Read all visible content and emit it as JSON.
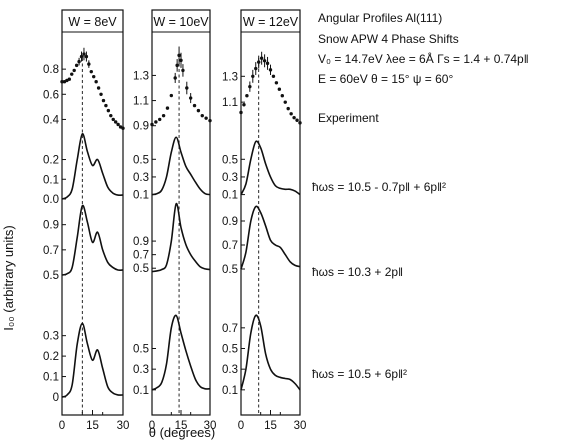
{
  "chart_data": {
    "type": "line",
    "xlabel": "θ (degrees)",
    "ylabel": "I₀₀ (arbitrary units)",
    "xlim": [
      0,
      30
    ],
    "xticks": [
      "0",
      "15",
      "30"
    ],
    "xtick_values": [
      0,
      15,
      30
    ],
    "minor_xticks": [
      10,
      20
    ],
    "header": {
      "line1": "Angular Profiles Al(111)",
      "line2": "Snow APW  4 Phase Shifts",
      "line3": "V₀ = 14.7eV   λee = 6Å   Γs = 1.4 + 0.74p‖",
      "line4": "E = 60eV   θ = 15°   ψ = 60°"
    },
    "row_labels": [
      "Experiment",
      "ħωs = 10.5 - 0.7p‖ + 6p‖²",
      "ħωs = 10.3 + 2p‖",
      "ħωs = 10.5 + 6p‖²"
    ],
    "panels": [
      {
        "title": "W = 8eV",
        "peak_x": 10,
        "rows": [
          {
            "kind": "experiment",
            "ylim": [
              0.3,
              1.0
            ],
            "yticks": [
              {
                "label": "0.8",
                "v": 0.8
              },
              {
                "label": "0.6",
                "v": 0.6
              },
              {
                "label": "0.4",
                "v": 0.4
              }
            ],
            "x": [
              0,
              1.2,
              2.4,
              3.6,
              4.8,
              6,
              7.2,
              8.4,
              9.6,
              10.8,
              12,
              13.2,
              14.4,
              15.6,
              16.8,
              18,
              19.2,
              20.4,
              21.6,
              22.8,
              24,
              25.2,
              26.4,
              27.6,
              28.8,
              30
            ],
            "y": [
              0.7,
              0.7,
              0.71,
              0.72,
              0.76,
              0.79,
              0.83,
              0.86,
              0.9,
              0.92,
              0.9,
              0.84,
              0.78,
              0.74,
              0.7,
              0.65,
              0.6,
              0.55,
              0.51,
              0.47,
              0.43,
              0.4,
              0.38,
              0.36,
              0.34,
              0.33
            ],
            "yerr": [
              0,
              0,
              0,
              0,
              0,
              0,
              0,
              0.03,
              0.04,
              0.05,
              0.04,
              0.03,
              0,
              0,
              0,
              0,
              0,
              0,
              0,
              0,
              0,
              0,
              0,
              0,
              0,
              0
            ]
          },
          {
            "kind": "theory",
            "ylim": [
              0,
              0.38
            ],
            "yticks": [
              {
                "label": "0.2",
                "v": 0.2
              },
              {
                "label": "0.1",
                "v": 0.1
              },
              {
                "label": "0.0",
                "v": 0
              }
            ],
            "x": [
              0,
              2.5,
              5,
              7.5,
              10,
              12.5,
              15,
              17.5,
              20,
              22.5,
              25,
              27.5,
              30
            ],
            "y": [
              0,
              0.01,
              0.05,
              0.2,
              0.33,
              0.24,
              0.17,
              0.2,
              0.13,
              0.06,
              0.03,
              0.02,
              0.02
            ]
          },
          {
            "kind": "theory",
            "ylim": [
              0.5,
              1.12
            ],
            "yticks": [
              {
                "label": "0.9",
                "v": 0.9
              },
              {
                "label": "0.7",
                "v": 0.7
              },
              {
                "label": "0.5",
                "v": 0.5
              }
            ],
            "x": [
              0,
              2.5,
              5,
              7.5,
              10,
              12.5,
              15,
              17.5,
              20,
              22.5,
              25,
              27.5,
              30
            ],
            "y": [
              0.5,
              0.51,
              0.56,
              0.8,
              1.05,
              0.92,
              0.76,
              0.84,
              0.7,
              0.6,
              0.56,
              0.54,
              0.54
            ]
          },
          {
            "kind": "theory",
            "ylim": [
              0,
              0.45
            ],
            "yticks": [
              {
                "label": "0.3",
                "v": 0.3
              },
              {
                "label": "0.2",
                "v": 0.2
              },
              {
                "label": "0.1",
                "v": 0.1
              },
              {
                "label": "0",
                "v": 0
              }
            ],
            "x": [
              0,
              2.5,
              5,
              7.5,
              10,
              12.5,
              15,
              17.5,
              20,
              22.5,
              25,
              27.5,
              30
            ],
            "y": [
              0,
              0.01,
              0.06,
              0.26,
              0.36,
              0.26,
              0.18,
              0.23,
              0.14,
              0.05,
              0.02,
              0.01,
              0.01
            ]
          }
        ]
      },
      {
        "title": "W = 10eV",
        "peak_x": 14,
        "rows": [
          {
            "kind": "experiment",
            "ylim": [
              0.85,
              1.55
            ],
            "yticks": [
              {
                "label": "1.3",
                "v": 1.3
              },
              {
                "label": "1.1",
                "v": 1.1
              },
              {
                "label": "0.9",
                "v": 0.9
              }
            ],
            "x": [
              0,
              2,
              4,
              6,
              8,
              10,
              12,
              13,
              14,
              15,
              16,
              18,
              20,
              22,
              24,
              26,
              28,
              30
            ],
            "y": [
              0.91,
              0.93,
              0.95,
              0.98,
              1.04,
              1.14,
              1.28,
              1.38,
              1.46,
              1.42,
              1.34,
              1.2,
              1.12,
              1.06,
              1.02,
              0.98,
              0.96,
              0.94
            ],
            "yerr": [
              0,
              0,
              0,
              0,
              0,
              0,
              0.04,
              0.05,
              0.07,
              0.06,
              0.05,
              0.05,
              0.04,
              0,
              0,
              0,
              0,
              0
            ]
          },
          {
            "kind": "theory",
            "ylim": [
              0.05,
              0.9
            ],
            "yticks": [
              {
                "label": "0.5",
                "v": 0.5
              },
              {
                "label": "0.3",
                "v": 0.3
              },
              {
                "label": "0.1",
                "v": 0.1
              }
            ],
            "x": [
              0,
              2.5,
              5,
              7.5,
              10,
              12.5,
              15,
              17.5,
              20,
              22.5,
              25,
              27.5,
              30
            ],
            "y": [
              0.1,
              0.11,
              0.15,
              0.3,
              0.58,
              0.75,
              0.58,
              0.42,
              0.33,
              0.24,
              0.16,
              0.11,
              0.1
            ]
          },
          {
            "kind": "theory",
            "ylim": [
              0.4,
              1.55
            ],
            "yticks": [
              {
                "label": "0.9",
                "v": 0.9
              },
              {
                "label": "0.7",
                "v": 0.7
              },
              {
                "label": "0.5",
                "v": 0.5
              }
            ],
            "x": [
              0,
              2.5,
              5,
              7.5,
              10,
              12.5,
              15,
              17.5,
              20,
              22.5,
              25,
              27.5,
              30
            ],
            "y": [
              0.45,
              0.46,
              0.48,
              0.55,
              0.9,
              1.45,
              1.1,
              0.85,
              0.7,
              0.6,
              0.52,
              0.49,
              0.48
            ]
          },
          {
            "kind": "theory",
            "ylim": [
              0.05,
              0.95
            ],
            "yticks": [
              {
                "label": "0.5",
                "v": 0.5
              },
              {
                "label": "0.3",
                "v": 0.3
              },
              {
                "label": "0.1",
                "v": 0.1
              }
            ],
            "x": [
              0,
              2.5,
              5,
              7.5,
              10,
              12.5,
              15,
              17.5,
              20,
              22.5,
              25,
              27.5,
              30
            ],
            "y": [
              0.1,
              0.12,
              0.17,
              0.35,
              0.7,
              0.82,
              0.65,
              0.48,
              0.33,
              0.2,
              0.13,
              0.11,
              0.11
            ]
          }
        ]
      },
      {
        "title": "W = 12eV",
        "peak_x": 9,
        "rows": [
          {
            "kind": "experiment",
            "ylim": [
              0.9,
              1.55
            ],
            "yticks": [
              {
                "label": "1.3",
                "v": 1.3
              },
              {
                "label": "1.1",
                "v": 1.1
              }
            ],
            "x": [
              0,
              1.5,
              3,
              4.5,
              6,
              7.5,
              9,
              10.5,
              12,
              13.5,
              15,
              16.5,
              18,
              19.5,
              21,
              22.5,
              24,
              25.5,
              27,
              28.5,
              30
            ],
            "y": [
              1.02,
              1.08,
              1.15,
              1.22,
              1.3,
              1.36,
              1.41,
              1.44,
              1.42,
              1.4,
              1.35,
              1.3,
              1.25,
              1.2,
              1.15,
              1.1,
              1.05,
              1.01,
              0.98,
              0.96,
              0.94
            ],
            "yerr": [
              0,
              0,
              0,
              0.04,
              0.05,
              0.05,
              0.05,
              0.05,
              0.05,
              0.05,
              0.04,
              0,
              0,
              0,
              0,
              0,
              0,
              0,
              0,
              0,
              0
            ]
          },
          {
            "kind": "theory",
            "ylim": [
              0.05,
              0.9
            ],
            "yticks": [
              {
                "label": "0.5",
                "v": 0.5
              },
              {
                "label": "0.3",
                "v": 0.3
              },
              {
                "label": "0.1",
                "v": 0.1
              }
            ],
            "x": [
              0,
              2.5,
              5,
              7.5,
              10,
              12.5,
              15,
              17.5,
              20,
              22.5,
              25,
              27.5,
              30
            ],
            "y": [
              0.1,
              0.22,
              0.5,
              0.7,
              0.63,
              0.45,
              0.3,
              0.2,
              0.17,
              0.16,
              0.16,
              0.14,
              0.1
            ]
          },
          {
            "kind": "theory",
            "ylim": [
              0.45,
              1.1
            ],
            "yticks": [
              {
                "label": "0.9",
                "v": 0.9
              },
              {
                "label": "0.7",
                "v": 0.7
              },
              {
                "label": "0.5",
                "v": 0.5
              }
            ],
            "x": [
              0,
              2.5,
              5,
              7.5,
              10,
              12.5,
              15,
              17.5,
              20,
              22.5,
              25,
              27.5,
              30
            ],
            "y": [
              0.5,
              0.64,
              0.9,
              1.02,
              0.97,
              0.86,
              0.74,
              0.7,
              0.68,
              0.62,
              0.56,
              0.53,
              0.52
            ]
          },
          {
            "kind": "theory",
            "ylim": [
              0.05,
              0.95
            ],
            "yticks": [
              {
                "label": "0.7",
                "v": 0.7
              },
              {
                "label": "0.5",
                "v": 0.5
              },
              {
                "label": "0.3",
                "v": 0.3
              },
              {
                "label": "0.1",
                "v": 0.1
              }
            ],
            "x": [
              0,
              2.5,
              5,
              7.5,
              10,
              12.5,
              15,
              17.5,
              20,
              22.5,
              25,
              27.5,
              30
            ],
            "y": [
              0.1,
              0.3,
              0.65,
              0.82,
              0.72,
              0.45,
              0.3,
              0.24,
              0.22,
              0.21,
              0.2,
              0.16,
              0.1
            ]
          }
        ]
      }
    ]
  }
}
